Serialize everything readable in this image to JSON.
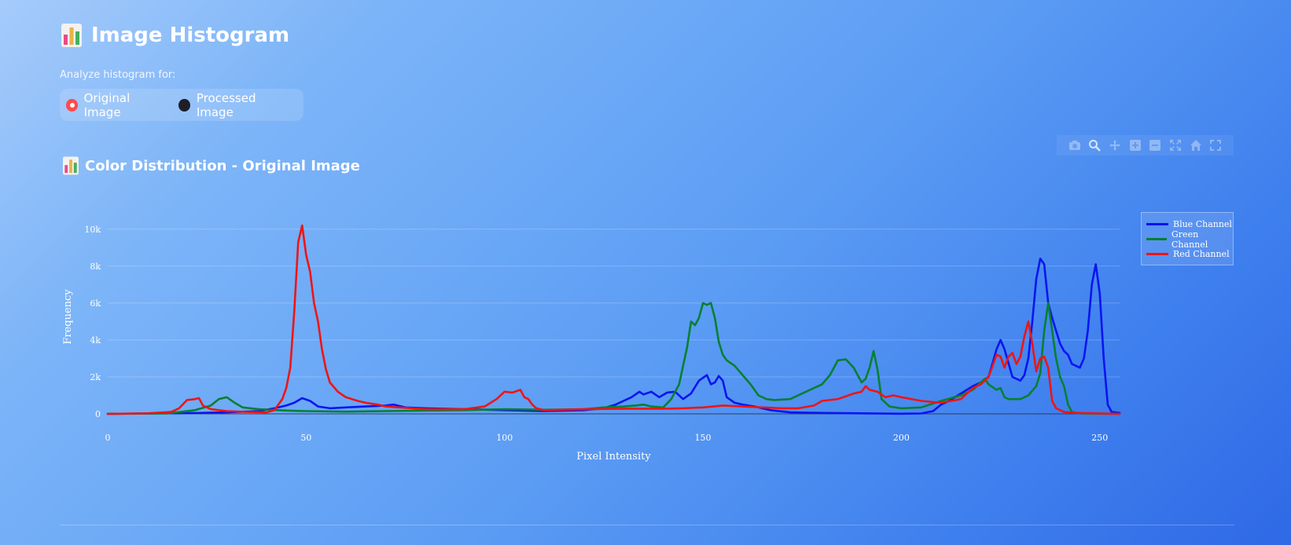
{
  "header": {
    "title": "Image Histogram",
    "icon": "bar-chart-icon"
  },
  "analyze": {
    "label": "Analyze histogram for:",
    "options": [
      "Original Image",
      "Processed Image"
    ],
    "selected": "Original Image"
  },
  "section": {
    "title": "Color Distribution - Original Image",
    "icon": "bar-chart-icon"
  },
  "modebar": {
    "buttons": [
      "camera-icon",
      "zoom-icon",
      "pan-icon",
      "zoom-in-icon",
      "zoom-out-icon",
      "autoscale-icon",
      "home-icon",
      "fullscreen-icon"
    ]
  },
  "colors": {
    "blue": "#0a14f0",
    "green": "#088030",
    "red": "#f01414",
    "radio_selected": "#ff4b4b"
  },
  "chart_data": {
    "type": "line",
    "title": "Color Distribution - Original Image",
    "xlabel": "Pixel Intensity",
    "ylabel": "Frequency",
    "xlim": [
      0,
      255
    ],
    "ylim": [
      0,
      10500
    ],
    "xticks": [
      0,
      50,
      100,
      150,
      200,
      250
    ],
    "yticks": [
      0,
      2000,
      4000,
      6000,
      8000,
      10000
    ],
    "ytick_labels": [
      "0",
      "2k",
      "4k",
      "6k",
      "8k",
      "10k"
    ],
    "grid": true,
    "legend_position": "top-right",
    "series": [
      {
        "name": "Blue Channel",
        "color": "#0a14f0",
        "points": [
          [
            0,
            0
          ],
          [
            10,
            20
          ],
          [
            20,
            40
          ],
          [
            30,
            80
          ],
          [
            38,
            150
          ],
          [
            42,
            300
          ],
          [
            45,
            450
          ],
          [
            47,
            600
          ],
          [
            49,
            850
          ],
          [
            51,
            700
          ],
          [
            53,
            400
          ],
          [
            56,
            300
          ],
          [
            60,
            350
          ],
          [
            65,
            400
          ],
          [
            70,
            450
          ],
          [
            72,
            500
          ],
          [
            75,
            350
          ],
          [
            80,
            300
          ],
          [
            90,
            250
          ],
          [
            100,
            200
          ],
          [
            110,
            150
          ],
          [
            120,
            200
          ],
          [
            125,
            300
          ],
          [
            128,
            500
          ],
          [
            130,
            700
          ],
          [
            132,
            900
          ],
          [
            134,
            1200
          ],
          [
            135,
            1050
          ],
          [
            137,
            1200
          ],
          [
            139,
            900
          ],
          [
            141,
            1150
          ],
          [
            143,
            1200
          ],
          [
            145,
            800
          ],
          [
            147,
            1100
          ],
          [
            149,
            1800
          ],
          [
            151,
            2100
          ],
          [
            152,
            1600
          ],
          [
            153,
            1700
          ],
          [
            154,
            2050
          ],
          [
            155,
            1800
          ],
          [
            156,
            900
          ],
          [
            158,
            600
          ],
          [
            160,
            500
          ],
          [
            163,
            400
          ],
          [
            167,
            200
          ],
          [
            172,
            80
          ],
          [
            180,
            50
          ],
          [
            200,
            10
          ],
          [
            205,
            20
          ],
          [
            208,
            150
          ],
          [
            210,
            500
          ],
          [
            212,
            700
          ],
          [
            215,
            1100
          ],
          [
            218,
            1500
          ],
          [
            220,
            1700
          ],
          [
            222,
            2000
          ],
          [
            224,
            3500
          ],
          [
            225,
            4000
          ],
          [
            226,
            3500
          ],
          [
            228,
            2000
          ],
          [
            230,
            1800
          ],
          [
            231,
            2100
          ],
          [
            232,
            3000
          ],
          [
            233,
            5000
          ],
          [
            234,
            7300
          ],
          [
            235,
            8400
          ],
          [
            236,
            8100
          ],
          [
            237,
            6000
          ],
          [
            238,
            5200
          ],
          [
            239,
            4500
          ],
          [
            240,
            3800
          ],
          [
            241,
            3400
          ],
          [
            242,
            3200
          ],
          [
            243,
            2700
          ],
          [
            245,
            2500
          ],
          [
            246,
            3000
          ],
          [
            247,
            4500
          ],
          [
            248,
            7000
          ],
          [
            249,
            8100
          ],
          [
            250,
            6500
          ],
          [
            251,
            3000
          ],
          [
            252,
            500
          ],
          [
            253,
            100
          ],
          [
            255,
            50
          ]
        ]
      },
      {
        "name": "Green Channel",
        "color": "#088030",
        "points": [
          [
            0,
            0
          ],
          [
            15,
            20
          ],
          [
            22,
            200
          ],
          [
            26,
            450
          ],
          [
            28,
            800
          ],
          [
            30,
            900
          ],
          [
            32,
            600
          ],
          [
            34,
            350
          ],
          [
            38,
            250
          ],
          [
            45,
            180
          ],
          [
            50,
            150
          ],
          [
            60,
            120
          ],
          [
            80,
            180
          ],
          [
            90,
            200
          ],
          [
            100,
            250
          ],
          [
            110,
            220
          ],
          [
            120,
            250
          ],
          [
            125,
            350
          ],
          [
            130,
            400
          ],
          [
            133,
            450
          ],
          [
            135,
            500
          ],
          [
            137,
            400
          ],
          [
            140,
            350
          ],
          [
            142,
            800
          ],
          [
            144,
            1600
          ],
          [
            145,
            2600
          ],
          [
            146,
            3600
          ],
          [
            147,
            5000
          ],
          [
            148,
            4800
          ],
          [
            149,
            5200
          ],
          [
            150,
            6000
          ],
          [
            151,
            5900
          ],
          [
            152,
            6000
          ],
          [
            153,
            5200
          ],
          [
            154,
            3900
          ],
          [
            155,
            3200
          ],
          [
            156,
            2900
          ],
          [
            158,
            2600
          ],
          [
            160,
            2100
          ],
          [
            162,
            1600
          ],
          [
            164,
            1000
          ],
          [
            166,
            800
          ],
          [
            168,
            750
          ],
          [
            172,
            800
          ],
          [
            175,
            1100
          ],
          [
            178,
            1400
          ],
          [
            180,
            1600
          ],
          [
            182,
            2100
          ],
          [
            184,
            2900
          ],
          [
            186,
            2950
          ],
          [
            188,
            2500
          ],
          [
            190,
            1700
          ],
          [
            191,
            1900
          ],
          [
            192,
            2500
          ],
          [
            193,
            3400
          ],
          [
            194,
            2400
          ],
          [
            195,
            800
          ],
          [
            197,
            400
          ],
          [
            200,
            300
          ],
          [
            205,
            350
          ],
          [
            210,
            700
          ],
          [
            215,
            1000
          ],
          [
            218,
            1300
          ],
          [
            220,
            1700
          ],
          [
            221,
            1900
          ],
          [
            222,
            1600
          ],
          [
            224,
            1300
          ],
          [
            225,
            1400
          ],
          [
            226,
            900
          ],
          [
            227,
            800
          ],
          [
            230,
            800
          ],
          [
            232,
            1000
          ],
          [
            234,
            1500
          ],
          [
            235,
            2200
          ],
          [
            236,
            4500
          ],
          [
            237,
            6000
          ],
          [
            238,
            4500
          ],
          [
            239,
            3000
          ],
          [
            240,
            2000
          ],
          [
            241,
            1500
          ],
          [
            242,
            500
          ],
          [
            243,
            100
          ],
          [
            245,
            20
          ],
          [
            255,
            0
          ]
        ]
      },
      {
        "name": "Red Channel",
        "color": "#f01414",
        "points": [
          [
            0,
            0
          ],
          [
            10,
            30
          ],
          [
            16,
            100
          ],
          [
            18,
            300
          ],
          [
            20,
            750
          ],
          [
            22,
            800
          ],
          [
            23,
            850
          ],
          [
            24,
            450
          ],
          [
            26,
            250
          ],
          [
            30,
            150
          ],
          [
            35,
            100
          ],
          [
            40,
            80
          ],
          [
            42,
            200
          ],
          [
            44,
            800
          ],
          [
            45,
            1400
          ],
          [
            46,
            2500
          ],
          [
            47,
            5500
          ],
          [
            48,
            9300
          ],
          [
            49,
            10200
          ],
          [
            50,
            8600
          ],
          [
            51,
            7700
          ],
          [
            52,
            6000
          ],
          [
            53,
            5000
          ],
          [
            54,
            3500
          ],
          [
            55,
            2400
          ],
          [
            56,
            1700
          ],
          [
            58,
            1200
          ],
          [
            60,
            900
          ],
          [
            63,
            700
          ],
          [
            65,
            600
          ],
          [
            68,
            500
          ],
          [
            70,
            400
          ],
          [
            80,
            250
          ],
          [
            90,
            250
          ],
          [
            95,
            400
          ],
          [
            98,
            800
          ],
          [
            100,
            1200
          ],
          [
            102,
            1150
          ],
          [
            104,
            1300
          ],
          [
            105,
            900
          ],
          [
            106,
            800
          ],
          [
            107,
            500
          ],
          [
            108,
            300
          ],
          [
            110,
            200
          ],
          [
            120,
            250
          ],
          [
            130,
            280
          ],
          [
            140,
            280
          ],
          [
            145,
            300
          ],
          [
            150,
            350
          ],
          [
            155,
            450
          ],
          [
            160,
            400
          ],
          [
            165,
            350
          ],
          [
            170,
            300
          ],
          [
            174,
            300
          ],
          [
            178,
            450
          ],
          [
            180,
            700
          ],
          [
            184,
            800
          ],
          [
            188,
            1100
          ],
          [
            190,
            1200
          ],
          [
            191,
            1500
          ],
          [
            192,
            1300
          ],
          [
            194,
            1200
          ],
          [
            196,
            900
          ],
          [
            198,
            1000
          ],
          [
            200,
            900
          ],
          [
            205,
            700
          ],
          [
            210,
            600
          ],
          [
            215,
            800
          ],
          [
            218,
            1400
          ],
          [
            220,
            1600
          ],
          [
            222,
            2000
          ],
          [
            224,
            3200
          ],
          [
            225,
            3100
          ],
          [
            226,
            2500
          ],
          [
            227,
            3100
          ],
          [
            228,
            3300
          ],
          [
            229,
            2700
          ],
          [
            230,
            3100
          ],
          [
            231,
            4200
          ],
          [
            232,
            5000
          ],
          [
            233,
            3800
          ],
          [
            234,
            2300
          ],
          [
            235,
            3000
          ],
          [
            236,
            3100
          ],
          [
            237,
            2500
          ],
          [
            238,
            700
          ],
          [
            239,
            300
          ],
          [
            241,
            100
          ],
          [
            244,
            50
          ],
          [
            255,
            0
          ]
        ]
      }
    ]
  }
}
